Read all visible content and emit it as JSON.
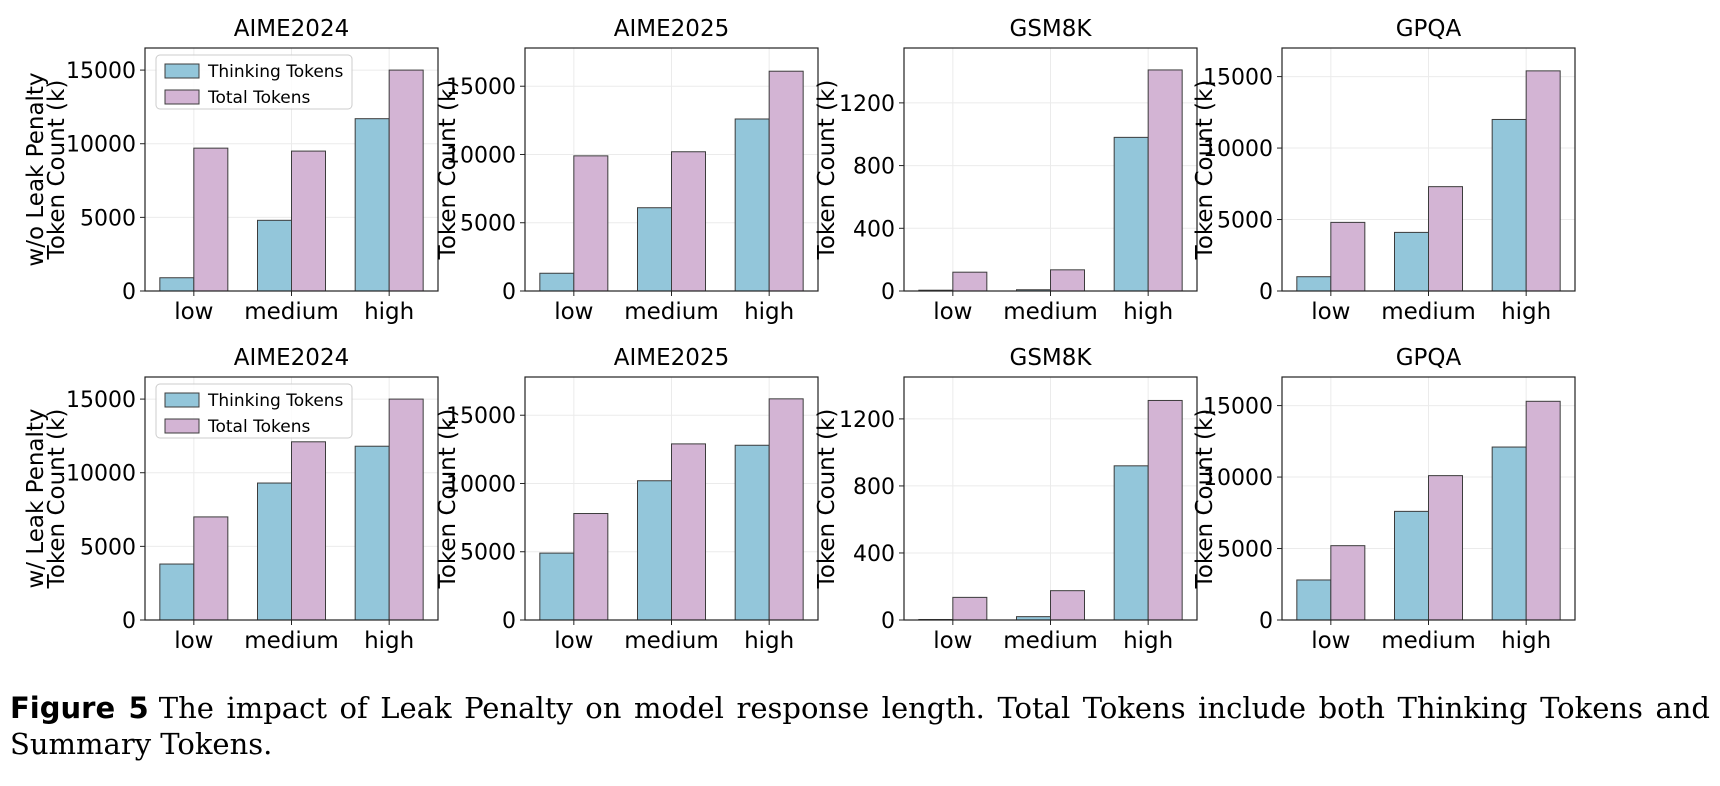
{
  "chart_data": [
    {
      "type": "bar",
      "title": "AIME2024",
      "ylabel": "w/o Leak Penalty\nToken Count (k)",
      "categories": [
        "low",
        "medium",
        "high"
      ],
      "ylim": [
        0,
        16500
      ],
      "yticks": [
        0,
        5000,
        10000,
        15000
      ],
      "legend": "top-left",
      "grid": true,
      "series": [
        {
          "name": "Thinking Tokens",
          "color": "#93c6da",
          "values": [
            900,
            4800,
            11700
          ]
        },
        {
          "name": "Total Tokens",
          "color": "#d3b4d4",
          "values": [
            9700,
            9500,
            15000
          ]
        }
      ]
    },
    {
      "type": "bar",
      "title": "AIME2025",
      "ylabel": "Token Count (k)",
      "categories": [
        "low",
        "medium",
        "high"
      ],
      "ylim": [
        0,
        17800
      ],
      "yticks": [
        0,
        5000,
        10000,
        15000
      ],
      "legend": "none",
      "grid": true,
      "series": [
        {
          "name": "Thinking Tokens",
          "color": "#93c6da",
          "values": [
            1300,
            6100,
            12600
          ]
        },
        {
          "name": "Total Tokens",
          "color": "#d3b4d4",
          "values": [
            9900,
            10200,
            16100
          ]
        }
      ]
    },
    {
      "type": "bar",
      "title": "GSM8K",
      "ylabel": "Token Count (k)",
      "categories": [
        "low",
        "medium",
        "high"
      ],
      "ylim": [
        0,
        1550
      ],
      "yticks": [
        0,
        400,
        800,
        1200
      ],
      "legend": "none",
      "grid": true,
      "series": [
        {
          "name": "Thinking Tokens",
          "color": "#93c6da",
          "values": [
            5,
            8,
            980
          ]
        },
        {
          "name": "Total Tokens",
          "color": "#d3b4d4",
          "values": [
            120,
            135,
            1410
          ]
        }
      ]
    },
    {
      "type": "bar",
      "title": "GPQA",
      "ylabel": "Token Count (k)",
      "categories": [
        "low",
        "medium",
        "high"
      ],
      "ylim": [
        0,
        17000
      ],
      "yticks": [
        0,
        5000,
        10000,
        15000
      ],
      "legend": "none",
      "grid": true,
      "series": [
        {
          "name": "Thinking Tokens",
          "color": "#93c6da",
          "values": [
            1000,
            4100,
            12000
          ]
        },
        {
          "name": "Total Tokens",
          "color": "#d3b4d4",
          "values": [
            4800,
            7300,
            15400
          ]
        }
      ]
    },
    {
      "type": "bar",
      "title": "AIME2024",
      "ylabel": "w/ Leak Penalty\nToken Count (k)",
      "categories": [
        "low",
        "medium",
        "high"
      ],
      "ylim": [
        0,
        16500
      ],
      "yticks": [
        0,
        5000,
        10000,
        15000
      ],
      "legend": "top-left",
      "grid": true,
      "series": [
        {
          "name": "Thinking Tokens",
          "color": "#93c6da",
          "values": [
            3800,
            9300,
            11800
          ]
        },
        {
          "name": "Total Tokens",
          "color": "#d3b4d4",
          "values": [
            7000,
            12100,
            15000
          ]
        }
      ]
    },
    {
      "type": "bar",
      "title": "AIME2025",
      "ylabel": "Token Count (k)",
      "categories": [
        "low",
        "medium",
        "high"
      ],
      "ylim": [
        0,
        17800
      ],
      "yticks": [
        0,
        5000,
        10000,
        15000
      ],
      "legend": "none",
      "grid": true,
      "series": [
        {
          "name": "Thinking Tokens",
          "color": "#93c6da",
          "values": [
            4900,
            10200,
            12800
          ]
        },
        {
          "name": "Total Tokens",
          "color": "#d3b4d4",
          "values": [
            7800,
            12900,
            16200
          ]
        }
      ]
    },
    {
      "type": "bar",
      "title": "GSM8K",
      "ylabel": "Token Count (k)",
      "categories": [
        "low",
        "medium",
        "high"
      ],
      "ylim": [
        0,
        1450
      ],
      "yticks": [
        0,
        400,
        800,
        1200
      ],
      "legend": "none",
      "grid": true,
      "series": [
        {
          "name": "Thinking Tokens",
          "color": "#93c6da",
          "values": [
            3,
            20,
            920
          ]
        },
        {
          "name": "Total Tokens",
          "color": "#d3b4d4",
          "values": [
            135,
            175,
            1310
          ]
        }
      ]
    },
    {
      "type": "bar",
      "title": "GPQA",
      "ylabel": "Token Count (k)",
      "categories": [
        "low",
        "medium",
        "high"
      ],
      "ylim": [
        0,
        17000
      ],
      "yticks": [
        0,
        5000,
        10000,
        15000
      ],
      "legend": "none",
      "grid": true,
      "series": [
        {
          "name": "Thinking Tokens",
          "color": "#93c6da",
          "values": [
            2800,
            7600,
            12100
          ]
        },
        {
          "name": "Total Tokens",
          "color": "#d3b4d4",
          "values": [
            5200,
            10100,
            15300
          ]
        }
      ]
    }
  ],
  "caption": {
    "label": "Figure 5",
    "text": "The impact of Leak Penalty on model response length. Total Tokens include both Thinking Tokens and Summary Tokens."
  }
}
